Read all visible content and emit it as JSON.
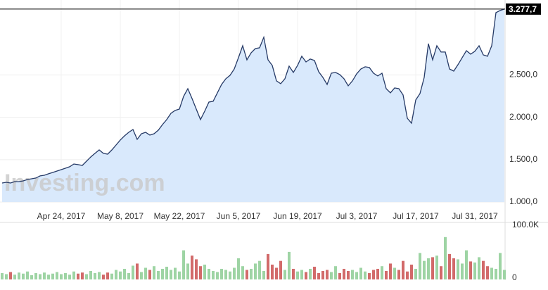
{
  "chart_data": {
    "type": "area",
    "watermark": "Investing.com",
    "categories": [
      null,
      null,
      null,
      null,
      null,
      null,
      null,
      null,
      null,
      null,
      null,
      null,
      null,
      null,
      "Apr 24, 2017",
      null,
      null,
      null,
      null,
      null,
      null,
      null,
      null,
      null,
      null,
      null,
      null,
      null,
      "May 8, 2017",
      null,
      null,
      null,
      null,
      null,
      null,
      null,
      null,
      null,
      null,
      null,
      null,
      null,
      "May 22, 2017",
      null,
      null,
      null,
      null,
      null,
      null,
      null,
      null,
      null,
      null,
      null,
      null,
      null,
      "Jun 5, 2017",
      null,
      null,
      null,
      null,
      null,
      null,
      null,
      null,
      null,
      null,
      null,
      null,
      null,
      "Jun 19, 2017",
      null,
      null,
      null,
      null,
      null,
      null,
      null,
      null,
      null,
      null,
      null,
      null,
      null,
      "Jul 3, 2017",
      null,
      null,
      null,
      null,
      null,
      null,
      null,
      null,
      null,
      null,
      null,
      null,
      null,
      "Jul 17, 2017",
      null,
      null,
      null,
      null,
      null,
      null,
      null,
      null,
      null,
      null,
      null,
      null,
      null,
      "Jul 31, 2017",
      null,
      null,
      null,
      null,
      null,
      null,
      null
    ],
    "values": [
      1224,
      1233,
      1224,
      1241,
      1241,
      1249,
      1266,
      1274,
      1283,
      1308,
      1316,
      1333,
      1349,
      1366,
      1382,
      1399,
      1416,
      1449,
      1441,
      1432,
      1482,
      1532,
      1574,
      1615,
      1574,
      1565,
      1615,
      1673,
      1732,
      1781,
      1823,
      1856,
      1740,
      1806,
      1823,
      1790,
      1806,
      1848,
      1914,
      1973,
      2047,
      2081,
      2097,
      2247,
      2338,
      2222,
      2097,
      1973,
      2072,
      2180,
      2189,
      2289,
      2388,
      2455,
      2496,
      2571,
      2704,
      2845,
      2679,
      2762,
      2812,
      2821,
      2945,
      2679,
      2613,
      2430,
      2397,
      2455,
      2604,
      2530,
      2613,
      2721,
      2654,
      2688,
      2671,
      2538,
      2471,
      2388,
      2521,
      2530,
      2505,
      2455,
      2372,
      2430,
      2513,
      2571,
      2596,
      2588,
      2521,
      2488,
      2521,
      2338,
      2289,
      2347,
      2338,
      2264,
      1989,
      1931,
      2205,
      2280,
      2471,
      2870,
      2679,
      2845,
      2771,
      2771,
      2571,
      2546,
      2621,
      2704,
      2787,
      2746,
      2779,
      2845,
      2737,
      2721,
      2845,
      3236,
      3261,
      3277.7
    ],
    "value_labels": [
      null,
      null,
      null,
      null,
      null,
      null,
      null,
      null,
      null,
      null,
      null,
      null,
      null,
      null,
      null,
      null,
      null,
      null,
      null,
      null,
      null,
      null,
      null,
      null,
      null,
      null,
      null,
      null,
      null,
      null,
      null,
      null,
      null,
      null,
      null,
      null,
      null,
      null,
      null,
      null,
      null,
      null,
      null,
      null,
      null,
      null,
      null,
      null,
      null,
      null,
      null,
      null,
      null,
      null,
      null,
      null,
      null,
      null,
      null,
      null,
      null,
      null,
      null,
      null,
      null,
      null,
      null,
      null,
      null,
      null,
      null,
      null,
      null,
      null,
      null,
      null,
      null,
      null,
      null,
      null,
      null,
      null,
      null,
      null,
      null,
      null,
      null,
      null,
      null,
      null,
      null,
      null,
      null,
      null,
      null,
      null,
      null,
      null,
      null,
      null,
      null,
      null,
      null,
      null,
      null,
      null,
      null,
      null,
      null,
      null,
      null,
      null,
      null,
      null,
      null,
      null,
      null,
      null,
      null,
      "3.277,7"
    ],
    "line_color": "#263a66",
    "fill_color": "#d9e9fc",
    "ylim": [
      1000,
      3385
    ],
    "yticks": [
      {
        "value": 1000,
        "label": "1.000,0"
      },
      {
        "value": 1500,
        "label": "1.500,0"
      },
      {
        "value": 2000,
        "label": "2.000,0"
      },
      {
        "value": 2500,
        "label": "2.500,0"
      }
    ],
    "volume": [
      12000,
      10000,
      14000,
      9000,
      13000,
      11000,
      15000,
      8000,
      12000,
      10000,
      13000,
      9000,
      11000,
      14000,
      10000,
      12000,
      9000,
      15000,
      11000,
      13000,
      10000,
      16000,
      12000,
      14000,
      9000,
      13000,
      11000,
      18000,
      15000,
      20000,
      12000,
      26000,
      30000,
      14000,
      22000,
      18000,
      25000,
      16000,
      20000,
      24000,
      18000,
      22000,
      15000,
      55000,
      30000,
      45000,
      38000,
      25000,
      28000,
      20000,
      16000,
      14000,
      20000,
      18000,
      15000,
      22000,
      40000,
      25000,
      18000,
      20000,
      30000,
      35000,
      16000,
      48000,
      28000,
      22000,
      35000,
      18000,
      52000,
      20000,
      15000,
      18000,
      14000,
      20000,
      24000,
      12000,
      16000,
      18000,
      14000,
      25000,
      12000,
      20000,
      16000,
      18000,
      14000,
      22000,
      15000,
      12000,
      18000,
      20000,
      25000,
      16000,
      30000,
      22000,
      18000,
      35000,
      15000,
      28000,
      20000,
      50000,
      35000,
      40000,
      42000,
      45000,
      25000,
      80000,
      48000,
      40000,
      38000,
      30000,
      55000,
      34000,
      32000,
      42000,
      35000,
      25000,
      22000,
      20000,
      50000,
      18000
    ],
    "up_color": "#9ed4a4",
    "down_color": "#d26a6a",
    "vlim": [
      0,
      105000
    ],
    "vticks": [
      0,
      {
        "value": 100000,
        "label": "100.0K"
      }
    ],
    "grid": true
  }
}
